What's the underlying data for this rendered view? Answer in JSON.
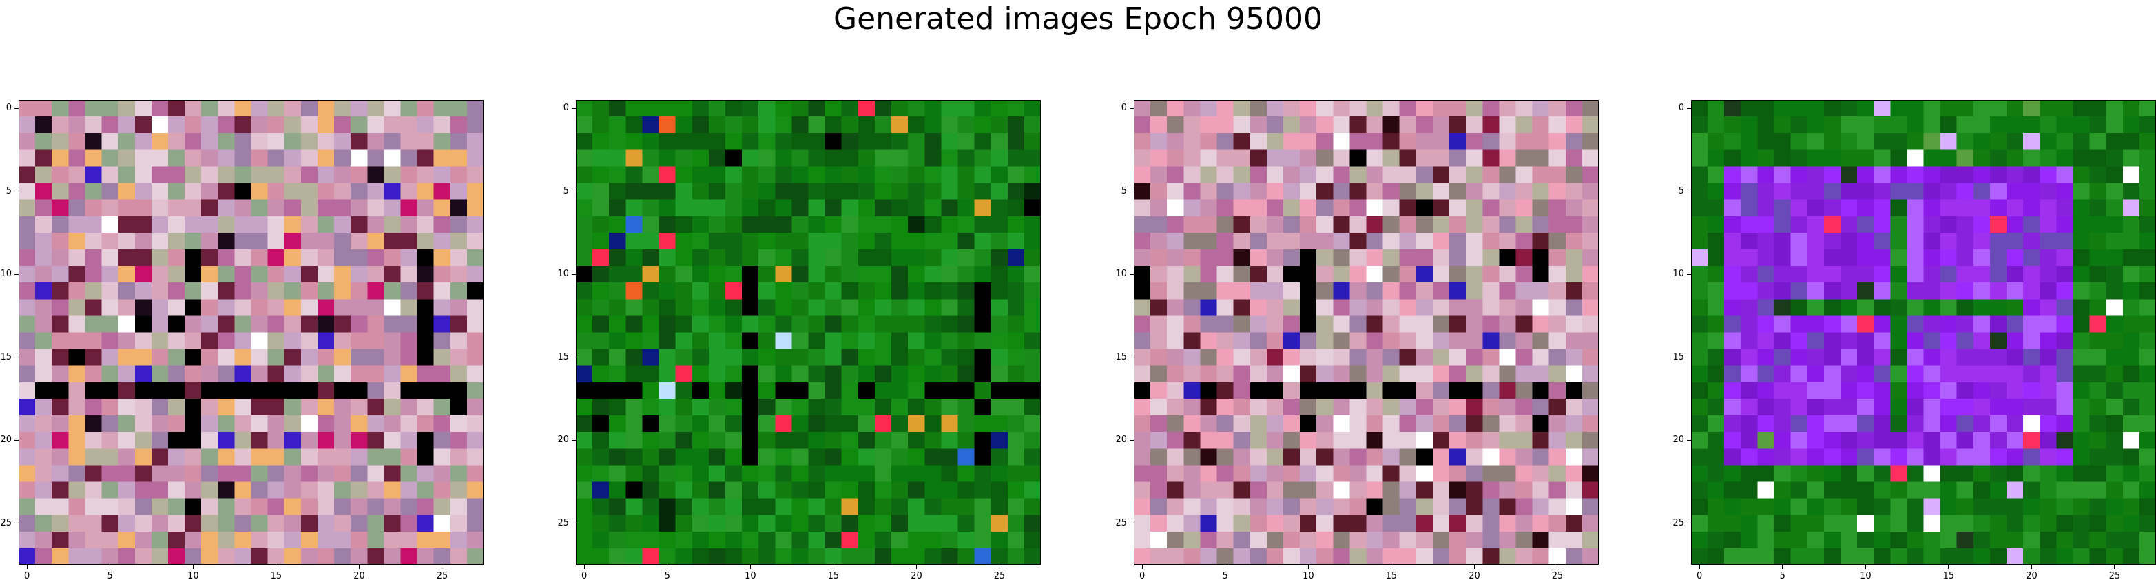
{
  "figure": {
    "title": "Generated images Epoch 95000",
    "grid_size": 28,
    "tick_values": [
      "0",
      "5",
      "10",
      "15",
      "20",
      "25"
    ],
    "panels": [
      {
        "palette": "pink-noise",
        "colors": [
          "#c98fb0",
          "#d9a3b8",
          "#b86a9e",
          "#e2c2d0",
          "#9e7fa8",
          "#c7a3c8",
          "#e6d0dc",
          "#d48fa6",
          "#8fa88a",
          "#b5b19a",
          "#6b1f3a",
          "#f2b26b"
        ],
        "accents": [
          "#000000",
          "#1a0a1a",
          "#ffffff",
          "#3a1cc8",
          "#c8106a"
        ]
      },
      {
        "palette": "green-noise",
        "colors": [
          "#0a7a10",
          "#127c0f",
          "#0e6a12",
          "#1a8a1a",
          "#2a9a28",
          "#0b5e0d",
          "#168f16",
          "#0c4f10",
          "#1f9e2a",
          "#0f8a0d"
        ],
        "accents": [
          "#000000",
          "#06280a",
          "#f06020",
          "#2a6ad8",
          "#e0a030",
          "#ff2a50",
          "#c0e0ff",
          "#0a1a80"
        ]
      },
      {
        "palette": "pink-noise",
        "colors": [
          "#c98fb0",
          "#d9a3b8",
          "#b86a9e",
          "#e2c2d0",
          "#9e7fa8",
          "#c7a3c8",
          "#e6d0dc",
          "#d48fa6",
          "#8f7f7a",
          "#b5b19a",
          "#5a1a2a",
          "#f0a0b8"
        ],
        "accents": [
          "#000000",
          "#2a0810",
          "#ffffff",
          "#2a1cb8",
          "#8a1a40"
        ]
      },
      {
        "palette": "green-purple",
        "colors": [
          "#0a7a10",
          "#127c0f",
          "#0e6a12",
          "#1a8a1a",
          "#2a9a28",
          "#0b5e0d"
        ],
        "inner": [
          "#8a1ae8",
          "#9a2aff",
          "#7a18d0",
          "#a030f0",
          "#6a4ab8",
          "#b060ff",
          "#8822dd"
        ],
        "accents": [
          "#ffffff",
          "#ff3060",
          "#5aa040",
          "#1a3a1a",
          "#d8b0ff"
        ]
      }
    ]
  }
}
